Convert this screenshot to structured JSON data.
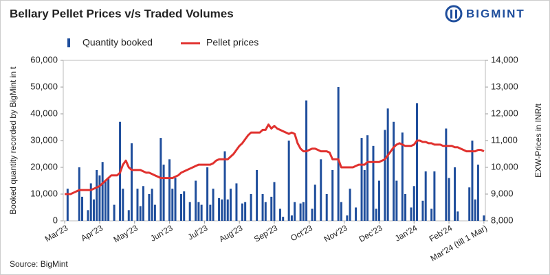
{
  "chart_data": {
    "type": "bar",
    "title": "Bellary Pellet Prices v/s Traded Volumes",
    "logo": "BIGMINT",
    "source": "Source: BigMint",
    "ylabel": "Booked quantity recorded by BigMint in t",
    "y2label": "EXW-Prices in INR/t",
    "categories": [
      "Mar'23",
      null,
      null,
      null,
      null,
      null,
      null,
      null,
      null,
      null,
      null,
      null,
      "Apr'23",
      null,
      null,
      null,
      null,
      null,
      null,
      null,
      null,
      null,
      null,
      null,
      "May'23",
      null,
      null,
      null,
      null,
      null,
      null,
      null,
      null,
      null,
      null,
      null,
      "Jun'23",
      null,
      null,
      null,
      null,
      null,
      null,
      null,
      null,
      null,
      null,
      null,
      "Jul'23",
      null,
      null,
      null,
      null,
      null,
      null,
      null,
      null,
      null,
      null,
      null,
      "Aug'23",
      null,
      null,
      null,
      null,
      null,
      null,
      null,
      null,
      null,
      null,
      null,
      "Sep'23",
      null,
      null,
      null,
      null,
      null,
      null,
      null,
      null,
      null,
      null,
      null,
      "Oct'23",
      null,
      null,
      null,
      null,
      null,
      null,
      null,
      null,
      null,
      null,
      null,
      "Nov'23",
      null,
      null,
      null,
      null,
      null,
      null,
      null,
      null,
      null,
      null,
      null,
      "Dec'23",
      null,
      null,
      null,
      null,
      null,
      null,
      null,
      null,
      null,
      null,
      null,
      "Jan'24",
      null,
      null,
      null,
      null,
      null,
      null,
      null,
      null,
      null,
      null,
      null,
      "Feb'24",
      null,
      null,
      null,
      null,
      null,
      null,
      null,
      null,
      null,
      null,
      null,
      "Mar'24 (till 1 Mar)"
    ],
    "series": [
      {
        "name": "Quantity booked",
        "type": "bar",
        "color": "#1f4e9c",
        "values": [
          null,
          12000,
          null,
          null,
          null,
          20000,
          9000,
          null,
          4000,
          14000,
          8000,
          19000,
          17000,
          22000,
          15000,
          16000,
          null,
          6000,
          null,
          37000,
          12000,
          null,
          4000,
          29000,
          null,
          12000,
          5500,
          13000,
          null,
          10000,
          12000,
          6000,
          null,
          31000,
          21000,
          null,
          23000,
          12000,
          16000,
          null,
          10000,
          11000,
          null,
          7000,
          null,
          15000,
          7000,
          6000,
          null,
          20000,
          6000,
          12000,
          null,
          8500,
          8000,
          26000,
          8000,
          12000,
          null,
          14000,
          null,
          6500,
          7000,
          null,
          10000,
          null,
          19000,
          null,
          10000,
          7000,
          null,
          9000,
          14500,
          null,
          4500,
          1500,
          null,
          30000,
          2000,
          7000,
          null,
          6500,
          7000,
          45000,
          null,
          4500,
          13500,
          null,
          23000,
          null,
          10000,
          null,
          19000,
          null,
          50000,
          7000,
          null,
          2000,
          12000,
          null,
          5000,
          null,
          31000,
          19000,
          32000,
          null,
          28000,
          4500,
          15000,
          null,
          34000,
          42000,
          null,
          37000,
          15000,
          null,
          33000,
          10000,
          null,
          5000,
          13000,
          44000,
          null,
          7500,
          18500,
          null,
          4500,
          18500,
          null,
          null,
          null,
          34500,
          16000,
          null,
          20000,
          3500,
          null,
          null,
          null,
          12500,
          30000,
          8000,
          21000,
          null,
          2000
        ]
      },
      {
        "name": "Pellet prices",
        "type": "line",
        "color": "#e0312e",
        "axis": "y2",
        "values": [
          9000,
          9000,
          9000,
          9050,
          9100,
          9150,
          9150,
          9150,
          9150,
          9150,
          9200,
          9250,
          9300,
          9400,
          9500,
          9600,
          9700,
          9700,
          9700,
          9800,
          10100,
          10250,
          10000,
          9900,
          9900,
          9900,
          9900,
          9850,
          9800,
          9800,
          9750,
          9700,
          9650,
          9600,
          9600,
          9600,
          9600,
          9600,
          9650,
          9700,
          9800,
          9850,
          9900,
          9950,
          10000,
          10050,
          10100,
          10100,
          10100,
          10100,
          10100,
          10150,
          10250,
          10300,
          10300,
          10300,
          10300,
          10400,
          10500,
          10650,
          10800,
          10900,
          11050,
          11200,
          11300,
          11300,
          11300,
          11300,
          11400,
          11400,
          11600,
          11450,
          11550,
          11450,
          11400,
          11350,
          11300,
          11250,
          11300,
          11250,
          10900,
          10700,
          10600,
          10600,
          10650,
          10700,
          10700,
          10650,
          10600,
          10600,
          10600,
          10550,
          10300,
          10300,
          10300,
          10000,
          10000,
          10000,
          10000,
          10000,
          10050,
          10100,
          10100,
          10100,
          10200,
          10200,
          10200,
          10200,
          10200,
          10250,
          10300,
          10450,
          10600,
          10750,
          10850,
          10900,
          10850,
          10800,
          10800,
          10800,
          10850,
          11000,
          11000,
          10950,
          10950,
          10900,
          10900,
          10850,
          10850,
          10850,
          10800,
          10800,
          10800,
          10800,
          10750,
          10750,
          10700,
          10650,
          10600,
          10600,
          10600,
          10600,
          10650,
          10650,
          10600
        ]
      }
    ],
    "ylim": [
      0,
      60000
    ],
    "yticks": [
      0,
      {
        "value": 10000,
        "label": "10,000"
      },
      {
        "value": 20000,
        "label": "20,000"
      },
      {
        "value": 30000,
        "label": "30,000"
      },
      {
        "value": 40000,
        "label": "40,000"
      },
      {
        "value": 50000,
        "label": "50,000"
      },
      {
        "value": 60000,
        "label": "60,000"
      }
    ],
    "y2lim": [
      8000,
      14000
    ],
    "y2ticks": [
      {
        "value": 8000,
        "label": "8,000"
      },
      {
        "value": 9000,
        "label": "9,000"
      },
      {
        "value": 10000,
        "label": "10,000"
      },
      {
        "value": 11000,
        "label": "11,000"
      },
      {
        "value": 12000,
        "label": "12,000"
      },
      {
        "value": 13000,
        "label": "13,000"
      },
      {
        "value": 14000,
        "label": "14,000"
      }
    ],
    "legend": "top-left"
  }
}
